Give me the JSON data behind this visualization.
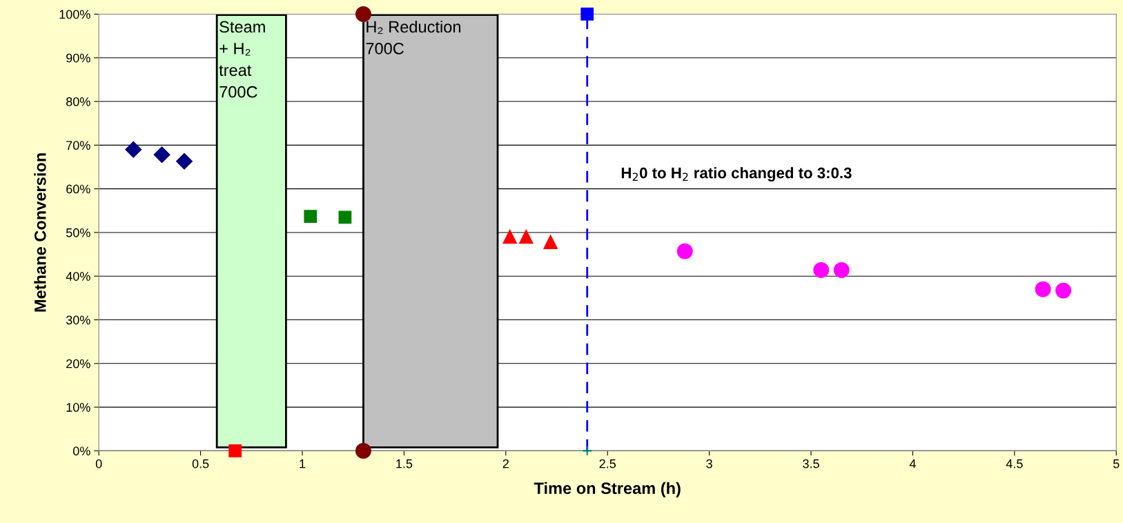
{
  "chart_data": {
    "type": "scatter",
    "xlabel": "Time on Stream (h)",
    "ylabel": "Methane Conversion",
    "series": [
      {
        "color": "#000080",
        "marker": "diamond",
        "x": [
          0.17,
          0.31,
          0.42
        ],
        "values": [
          69,
          67.8,
          66.3
        ]
      },
      {
        "color": "#008000",
        "marker": "square",
        "x": [
          1.04,
          1.21
        ],
        "values": [
          53.7,
          53.5
        ]
      },
      {
        "color": "#ff0000",
        "marker": "triangle",
        "x": [
          2.02,
          2.1,
          2.22
        ],
        "values": [
          49,
          49,
          47.8
        ]
      },
      {
        "color": "#ff00ff",
        "marker": "circle",
        "x": [
          2.88,
          3.55,
          3.65,
          4.64,
          4.74
        ],
        "values": [
          45.7,
          41.4,
          41.4,
          37,
          36.7
        ]
      },
      {
        "color": "#ff0000",
        "marker": "square",
        "x": [
          0.67
        ],
        "values": [
          0
        ]
      },
      {
        "color": "#800000",
        "marker": "circle",
        "x": [
          1.3,
          1.3
        ],
        "values": [
          0,
          100
        ]
      },
      {
        "color": "#0000ff",
        "marker": "square",
        "x": [
          2.4
        ],
        "values": [
          100
        ]
      },
      {
        "color": "#008080",
        "marker": "cross",
        "x": [
          2.4
        ],
        "values": [
          0
        ]
      }
    ],
    "bands": [
      {
        "axis": "x",
        "from": 0.58,
        "to": 0.92,
        "label": "Steam\n+ H₂\ntreat\n700C",
        "color": "#ccffcc"
      },
      {
        "axis": "x",
        "from": 1.3,
        "to": 1.96,
        "label": "H₂ Reduction\n700C",
        "color": "#c0c0c0"
      }
    ],
    "ref_lines": [
      {
        "axis": "x",
        "value": 2.4,
        "color": "#0000ff",
        "line_style": "dashed"
      }
    ],
    "annotations": [
      "H$_{2}$0 to H$_{2}$ ratio changed to 3:0.3"
    ],
    "xlim": [
      0,
      5
    ],
    "xticks": [
      0,
      0.5,
      1,
      1.5,
      2,
      2.5,
      3,
      3.5,
      4,
      4.5,
      5
    ],
    "ylim": [
      0,
      100
    ],
    "yticks": [
      {
        "value": 0,
        "label": "0%"
      },
      {
        "value": 10,
        "label": "10%"
      },
      {
        "value": 20,
        "label": "20%"
      },
      {
        "value": 30,
        "label": "30%"
      },
      {
        "value": 40,
        "label": "40%"
      },
      {
        "value": 50,
        "label": "50%"
      },
      {
        "value": 60,
        "label": "60%"
      },
      {
        "value": 70,
        "label": "70%"
      },
      {
        "value": 80,
        "label": "80%"
      },
      {
        "value": 90,
        "label": "90%"
      },
      {
        "value": 100,
        "label": "100%"
      }
    ],
    "grid": "y",
    "legend": false
  }
}
